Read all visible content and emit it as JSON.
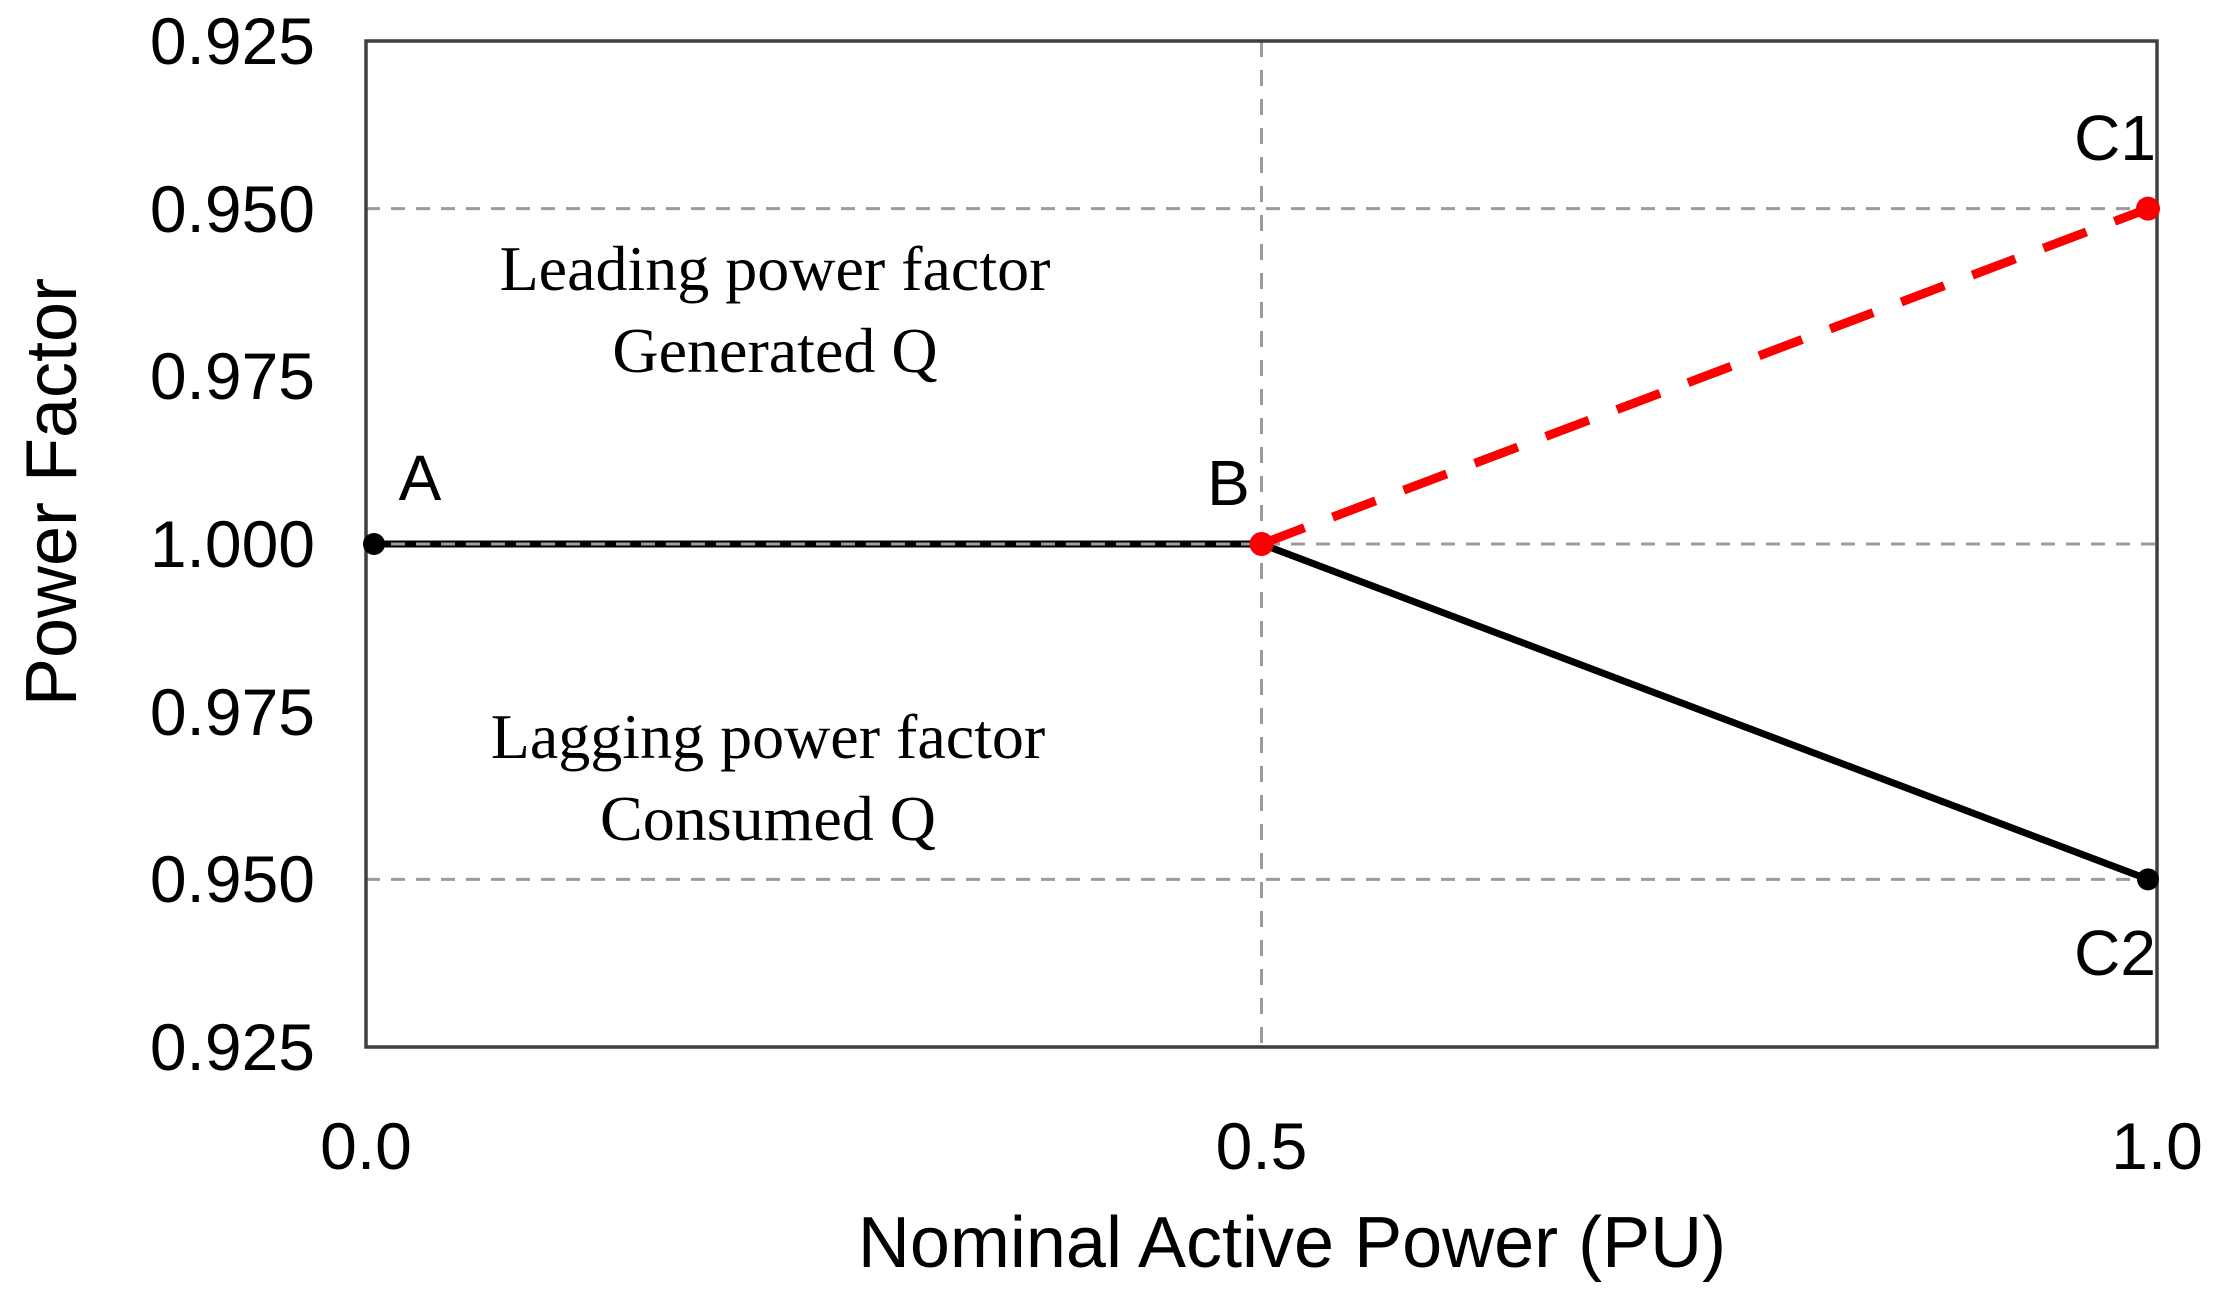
{
  "figure_title": "",
  "colors": {
    "series_black": "#000000",
    "series_red": "#FB0000",
    "gridline": "#9B9B9B",
    "plot_border": "#3F3F3F",
    "text": "#000000"
  },
  "chart_data": {
    "type": "line",
    "title": "",
    "xlabel": "Nominal Active Power (PU)",
    "ylabel": "Power Factor",
    "x_axis": {
      "range": [
        0.0,
        1.0
      ],
      "ticks": [
        {
          "v": 0.0,
          "label": "0.0"
        },
        {
          "v": 0.5,
          "label": "0.5"
        },
        {
          "v": 1.0,
          "label": "1.0"
        }
      ]
    },
    "y_axis": {
      "mirrored_about": "1.000",
      "unit_per_tick": 0.025,
      "tick_labels_top_to_bottom": [
        "0.925",
        "0.950",
        "0.975",
        "1.000",
        "0.975",
        "0.950",
        "0.925"
      ]
    },
    "gridlines": {
      "style": "dashed-gray",
      "horizontal_at_tick_index": [
        1,
        3,
        5
      ],
      "vertical_at_x": [
        0.5
      ]
    },
    "series": [
      {
        "name": "unity-to-lagging-black-solid",
        "color": "#000000",
        "line_style": "solid",
        "points": [
          {
            "x": 0.0,
            "pf": 1.0,
            "side": "unity",
            "label": "A",
            "marker": true
          },
          {
            "x": 0.5,
            "pf": 1.0,
            "side": "unity",
            "marker": false
          },
          {
            "x": 1.0,
            "pf": 0.95,
            "side": "lagging",
            "label": "C2",
            "marker": true
          }
        ]
      },
      {
        "name": "leading-red-dashed",
        "color": "#FB0000",
        "line_style": "dashed",
        "points": [
          {
            "x": 0.5,
            "pf": 1.0,
            "side": "unity",
            "label": "B",
            "marker": true
          },
          {
            "x": 1.0,
            "pf": 0.95,
            "side": "leading",
            "label": "C1",
            "marker": true
          }
        ]
      }
    ],
    "annotations": [
      {
        "id": "leading-region",
        "lines": [
          "Leading power factor",
          "Generated Q"
        ]
      },
      {
        "id": "lagging-region",
        "lines": [
          "Lagging power factor",
          "Consumed Q"
        ]
      }
    ],
    "legend": "none"
  }
}
